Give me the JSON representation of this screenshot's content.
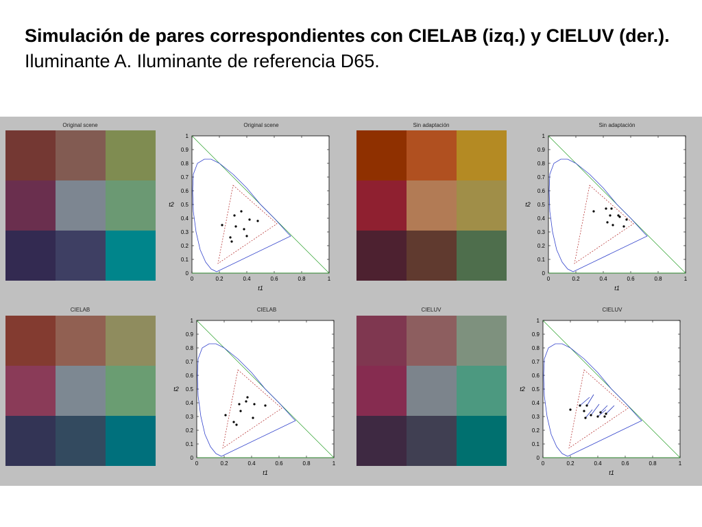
{
  "slide": {
    "title_bold": "Simulación de pares correspondientes con CIELAB (izq.) y CIELUV (der.).",
    "title_regular": " Iluminante A. Iluminante de referencia D65."
  },
  "swatch_panels": [
    {
      "title": "Original scene",
      "colors": [
        "#743833",
        "#825b52",
        "#7f8c51",
        "#6a2f4e",
        "#7d8691",
        "#6b9973",
        "#332a51",
        "#3e3f63",
        "#00858b"
      ]
    },
    {
      "title": "Sin adaptación",
      "colors": [
        "#8f3000",
        "#b05020",
        "#b48a23",
        "#8f2030",
        "#b27b55",
        "#a08e48",
        "#4d2130",
        "#603a2f",
        "#4e6e4c"
      ]
    },
    {
      "title": "CIELAB",
      "colors": [
        "#833b30",
        "#916052",
        "#8f8c5e",
        "#8a3b58",
        "#7d8892",
        "#6a9d72",
        "#333455",
        "#334a5f",
        "#00707c"
      ]
    },
    {
      "title": "CIELUV",
      "colors": [
        "#7f3750",
        "#8d5e5f",
        "#7e917e",
        "#862c50",
        "#7c848c",
        "#4c9980",
        "#3e2942",
        "#403f52",
        "#00706f"
      ]
    }
  ],
  "chart_data": [
    {
      "type": "scatter",
      "title": "Original scene",
      "xlabel": "t1",
      "ylabel": "t2",
      "xlim": [
        0,
        1
      ],
      "ylim": [
        0,
        1
      ],
      "xticks": [
        "0",
        "0.2",
        "0.4",
        "0.6",
        "0.8",
        "1"
      ],
      "yticks": [
        "0",
        "0.1",
        "0.2",
        "0.3",
        "0.4",
        "0.5",
        "0.6",
        "0.7",
        "0.8",
        "0.9",
        "1"
      ],
      "gamut_triangle": [
        [
          0.3,
          0.64
        ],
        [
          0.62,
          0.36
        ],
        [
          0.19,
          0.07
        ]
      ],
      "points": [
        [
          0.22,
          0.35
        ],
        [
          0.31,
          0.42
        ],
        [
          0.36,
          0.45
        ],
        [
          0.42,
          0.39
        ],
        [
          0.48,
          0.38
        ],
        [
          0.32,
          0.34
        ],
        [
          0.38,
          0.32
        ],
        [
          0.28,
          0.26
        ],
        [
          0.29,
          0.23
        ],
        [
          0.4,
          0.27
        ]
      ]
    },
    {
      "type": "scatter",
      "title": "Sin adaptación",
      "xlabel": "t1",
      "ylabel": "t2",
      "xlim": [
        0,
        1
      ],
      "ylim": [
        0,
        1
      ],
      "xticks": [
        "0",
        "0.2",
        "0.4",
        "0.6",
        "0.8",
        "1"
      ],
      "yticks": [
        "0",
        "0.1",
        "0.2",
        "0.3",
        "0.4",
        "0.5",
        "0.6",
        "0.7",
        "0.8",
        "0.9",
        "1"
      ],
      "gamut_triangle": [
        [
          0.3,
          0.64
        ],
        [
          0.62,
          0.36
        ],
        [
          0.19,
          0.07
        ]
      ],
      "points": [
        [
          0.33,
          0.45
        ],
        [
          0.42,
          0.47
        ],
        [
          0.46,
          0.47
        ],
        [
          0.45,
          0.42
        ],
        [
          0.52,
          0.41
        ],
        [
          0.57,
          0.39
        ],
        [
          0.43,
          0.37
        ],
        [
          0.47,
          0.35
        ],
        [
          0.55,
          0.34
        ],
        [
          0.51,
          0.42
        ]
      ]
    },
    {
      "type": "scatter",
      "title": "CIELAB",
      "xlabel": "t1",
      "ylabel": "t2",
      "xlim": [
        0,
        1
      ],
      "ylim": [
        0,
        1
      ],
      "xticks": [
        "0",
        "0.2",
        "0.4",
        "0.6",
        "0.8",
        "1"
      ],
      "yticks": [
        "0",
        "0.1",
        "0.2",
        "0.3",
        "0.4",
        "0.5",
        "0.6",
        "0.7",
        "0.8",
        "0.9",
        "1"
      ],
      "gamut_triangle": [
        [
          0.3,
          0.64
        ],
        [
          0.62,
          0.36
        ],
        [
          0.19,
          0.07
        ]
      ],
      "points": [
        [
          0.21,
          0.31
        ],
        [
          0.31,
          0.39
        ],
        [
          0.37,
          0.44
        ],
        [
          0.42,
          0.39
        ],
        [
          0.5,
          0.38
        ],
        [
          0.32,
          0.34
        ],
        [
          0.41,
          0.29
        ],
        [
          0.27,
          0.26
        ],
        [
          0.29,
          0.24
        ],
        [
          0.36,
          0.41
        ]
      ]
    },
    {
      "type": "scatter",
      "title": "CIELUV",
      "xlabel": "t1",
      "ylabel": "t2",
      "xlim": [
        0,
        1
      ],
      "ylim": [
        0,
        1
      ],
      "xticks": [
        "0",
        "0.2",
        "0.4",
        "0.6",
        "0.8",
        "1"
      ],
      "yticks": [
        "0",
        "0.1",
        "0.2",
        "0.3",
        "0.4",
        "0.5",
        "0.6",
        "0.7",
        "0.8",
        "0.9",
        "1"
      ],
      "gamut_triangle": [
        [
          0.3,
          0.64
        ],
        [
          0.62,
          0.36
        ],
        [
          0.19,
          0.07
        ]
      ],
      "points": [
        [
          0.2,
          0.35
        ],
        [
          0.27,
          0.38
        ],
        [
          0.32,
          0.38
        ],
        [
          0.3,
          0.34
        ],
        [
          0.35,
          0.31
        ],
        [
          0.42,
          0.33
        ],
        [
          0.46,
          0.32
        ],
        [
          0.31,
          0.29
        ],
        [
          0.4,
          0.3
        ],
        [
          0.45,
          0.3
        ]
      ],
      "arrows": [
        [
          [
            0.27,
            0.38
          ],
          [
            0.34,
            0.44
          ]
        ],
        [
          [
            0.32,
            0.38
          ],
          [
            0.37,
            0.46
          ]
        ],
        [
          [
            0.35,
            0.31
          ],
          [
            0.41,
            0.39
          ]
        ],
        [
          [
            0.42,
            0.33
          ],
          [
            0.47,
            0.38
          ]
        ],
        [
          [
            0.46,
            0.32
          ],
          [
            0.52,
            0.38
          ]
        ],
        [
          [
            0.31,
            0.29
          ],
          [
            0.36,
            0.35
          ]
        ],
        [
          [
            0.4,
            0.3
          ],
          [
            0.46,
            0.35
          ]
        ]
      ]
    }
  ]
}
